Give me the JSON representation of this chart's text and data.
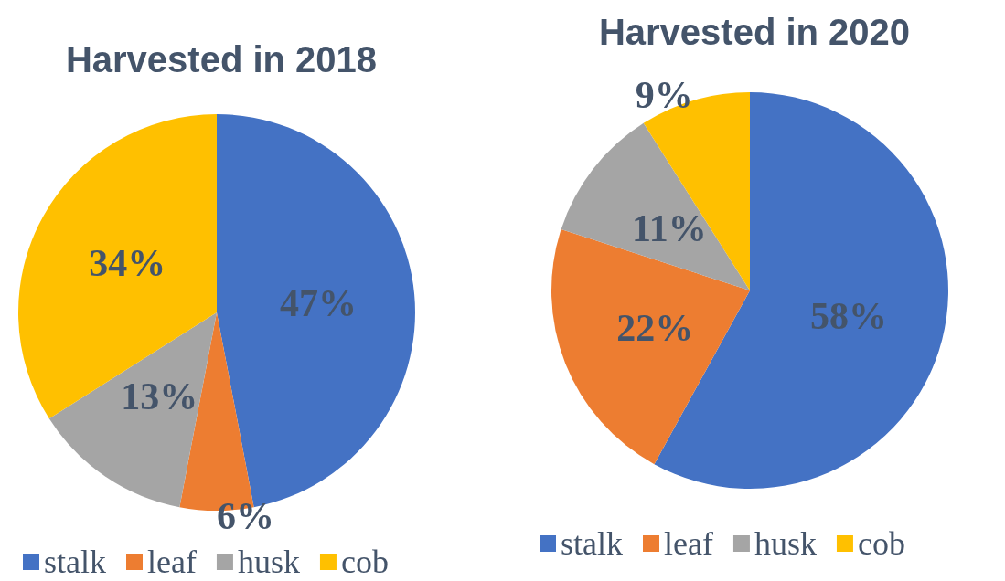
{
  "chart_data": [
    {
      "type": "pie",
      "title": "Harvested in 2018",
      "categories": [
        "stalk",
        "leaf",
        "husk",
        "cob"
      ],
      "values": [
        47,
        6,
        13,
        34
      ],
      "colors": [
        "#4472c4",
        "#ed7d31",
        "#a5a5a5",
        "#ffc000"
      ],
      "value_labels": [
        "47%",
        "6%",
        "13%",
        "34%"
      ],
      "legend": "bottom"
    },
    {
      "type": "pie",
      "title": "Harvested in 2020",
      "categories": [
        "stalk",
        "leaf",
        "husk",
        "cob"
      ],
      "values": [
        58,
        22,
        11,
        9
      ],
      "colors": [
        "#4472c4",
        "#ed7d31",
        "#a5a5a5",
        "#ffc000"
      ],
      "value_labels": [
        "58%",
        "22%",
        "11%",
        "9%"
      ],
      "legend": "bottom"
    }
  ]
}
